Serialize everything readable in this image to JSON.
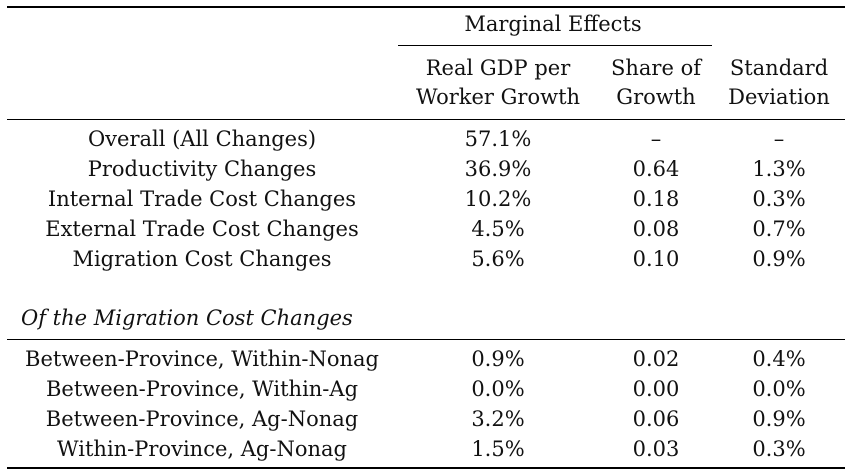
{
  "header": {
    "group_title": "Marginal Effects",
    "columns": [
      {
        "line1": "Real GDP per",
        "line2": "Worker Growth"
      },
      {
        "line1": "Share of",
        "line2": "Growth"
      },
      {
        "line1": "Standard",
        "line2": "Deviation"
      }
    ]
  },
  "main_rows": [
    {
      "label": "Overall (All Changes)",
      "gdp": "57.1%",
      "share": "–",
      "sd": "–"
    },
    {
      "label": "Productivity Changes",
      "gdp": "36.9%",
      "share": "0.64",
      "sd": "1.3%"
    },
    {
      "label": "Internal Trade Cost Changes",
      "gdp": "10.2%",
      "share": "0.18",
      "sd": "0.3%"
    },
    {
      "label": "External Trade Cost Changes",
      "gdp": "4.5%",
      "share": "0.08",
      "sd": "0.7%"
    },
    {
      "label": "Migration Cost Changes",
      "gdp": "5.6%",
      "share": "0.10",
      "sd": "0.9%"
    }
  ],
  "section_title": "Of the Migration Cost Changes",
  "migration_rows": [
    {
      "label": "Between-Province, Within-Nonag",
      "gdp": "0.9%",
      "share": "0.02",
      "sd": "0.4%"
    },
    {
      "label": "Between-Province, Within-Ag",
      "gdp": "0.0%",
      "share": "0.00",
      "sd": "0.0%"
    },
    {
      "label": "Between-Province, Ag-Nonag",
      "gdp": "3.2%",
      "share": "0.06",
      "sd": "0.9%"
    },
    {
      "label": "Within-Province, Ag-Nonag",
      "gdp": "1.5%",
      "share": "0.03",
      "sd": "0.3%"
    }
  ]
}
